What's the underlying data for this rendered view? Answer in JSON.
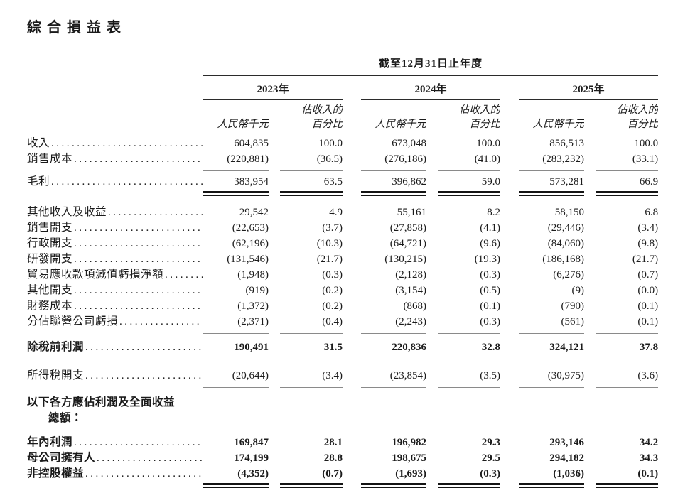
{
  "page": {
    "title": "綜合損益表"
  },
  "table": {
    "period_header": "截至12月31日止年度",
    "years": [
      "2023年",
      "2024年",
      "2025年"
    ],
    "col_headers": {
      "amount": "人民幣千元",
      "percent_line1": "佔收入的",
      "percent_line2": "百分比"
    },
    "leader_dots": "..........................................................................",
    "rows": [
      {
        "label": "收入",
        "values": [
          "604,835",
          "100.0",
          "673,048",
          "100.0",
          "856,513",
          "100.0"
        ]
      },
      {
        "label": "銷售成本 ",
        "underline": "single",
        "values": [
          "(220,881)",
          "(36.5)",
          "(276,186)",
          "(41.0)",
          "(283,232)",
          "(33.1)"
        ]
      },
      {
        "label": "毛利",
        "underline": "double",
        "gap_before": 4,
        "values": [
          "383,954",
          "63.5",
          "396,862",
          "59.0",
          "573,281",
          "66.9"
        ]
      },
      {
        "label": "其他收入及收益",
        "gap_before": 12,
        "values": [
          "29,542",
          "4.9",
          "55,161",
          "8.2",
          "58,150",
          "6.8"
        ]
      },
      {
        "label": "銷售開支 ",
        "values": [
          "(22,653)",
          "(3.7)",
          "(27,858)",
          "(4.1)",
          "(29,446)",
          "(3.4)"
        ]
      },
      {
        "label": "行政開支 ",
        "values": [
          "(62,196)",
          "(10.3)",
          "(64,721)",
          "(9.6)",
          "(84,060)",
          "(9.8)"
        ]
      },
      {
        "label": "研發開支 ",
        "values": [
          "(131,546)",
          "(21.7)",
          "(130,215)",
          "(19.3)",
          "(186,168)",
          "(21.7)"
        ]
      },
      {
        "label": "貿易應收款項減值虧損淨額",
        "values": [
          "(1,948)",
          "(0.3)",
          "(2,128)",
          "(0.3)",
          "(6,276)",
          "(0.7)"
        ]
      },
      {
        "label": "其他開支 ",
        "values": [
          "(919)",
          "(0.2)",
          "(3,154)",
          "(0.5)",
          "(9)",
          "(0.0)"
        ]
      },
      {
        "label": "財務成本 ",
        "values": [
          "(1,372)",
          "(0.2)",
          "(868)",
          "(0.1)",
          "(790)",
          "(0.1)"
        ]
      },
      {
        "label": "分佔聯營公司虧損",
        "underline": "single",
        "values": [
          "(2,371)",
          "(0.4)",
          "(2,243)",
          "(0.3)",
          "(561)",
          "(0.1)"
        ]
      },
      {
        "label": "除稅前利潤 ",
        "emphasis": true,
        "underline": "single",
        "gap_before": 8,
        "values": [
          "190,491",
          "31.5",
          "220,836",
          "32.8",
          "324,121",
          "37.8"
        ]
      },
      {
        "label": "所得稅開支 ",
        "underline": "single",
        "gap_before": 12,
        "values": [
          "(20,644)",
          "(3.4)",
          "(23,854)",
          "(3.5)",
          "(30,975)",
          "(3.6)"
        ]
      },
      {
        "label": "以下各方應佔利潤及全面收益",
        "label_line2": "總額：",
        "emphasis": true,
        "no_leader": true,
        "gap_before": 10,
        "values": [
          "",
          "",
          "",
          "",
          "",
          ""
        ]
      },
      {
        "label": "年內利潤 ",
        "emphasis": true,
        "gap_before": 12,
        "values": [
          "169,847",
          "28.1",
          "196,982",
          "29.3",
          "293,146",
          "34.2"
        ]
      },
      {
        "label": "母公司擁有人",
        "emphasis": true,
        "values": [
          "174,199",
          "28.8",
          "198,675",
          "29.5",
          "294,182",
          "34.3"
        ]
      },
      {
        "label": "非控股權益 ",
        "emphasis": true,
        "underline": "double",
        "values": [
          "(4,352)",
          "(0.7)",
          "(1,693)",
          "(0.3)",
          "(1,036)",
          "(0.1)"
        ]
      }
    ]
  }
}
